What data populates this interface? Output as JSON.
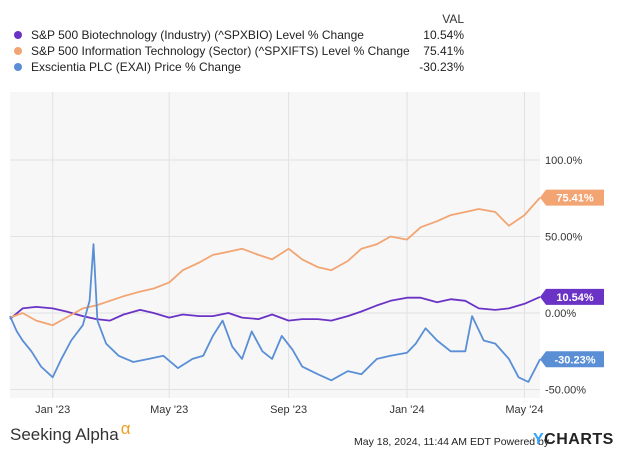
{
  "legend": {
    "header": "VAL",
    "items": [
      {
        "label": "S&P 500 Biotechnology (Industry) (^SPXBIO) Level % Change",
        "value": "10.54%",
        "color": "#6a33c6"
      },
      {
        "label": "S&P 500 Information Technology (Sector) (^SPXIFTS) Level % Change",
        "value": "75.41%",
        "color": "#f2a573"
      },
      {
        "label": "Exscientia PLC (EXAI) Price % Change",
        "value": "-30.23%",
        "color": "#5a8fd6"
      }
    ]
  },
  "footer": {
    "brand": "Seeking Alpha",
    "brand_mark": "α",
    "date_text": "May 18, 2024, 11:44 AM EDT Powered by",
    "ycharts_y": "Y",
    "ycharts_rest": "CHARTS"
  },
  "chart_data": {
    "type": "line",
    "ylim": [
      -50,
      100
    ],
    "xlim": [
      "2022-11-18",
      "2024-05-17"
    ],
    "grid": true,
    "y_ticks": [
      {
        "value": 100,
        "label": "100.0%"
      },
      {
        "value": 50,
        "label": "50.00%"
      },
      {
        "value": 0,
        "label": "0.00%"
      },
      {
        "value": -50,
        "label": "-50.00%"
      }
    ],
    "x_ticks": [
      {
        "date": "2023-01-01",
        "label": "Jan '23"
      },
      {
        "date": "2023-05-01",
        "label": "May '23"
      },
      {
        "date": "2023-09-01",
        "label": "Sep '23"
      },
      {
        "date": "2024-01-01",
        "label": "Jan '24"
      },
      {
        "date": "2024-05-01",
        "label": "May '24"
      }
    ],
    "series": [
      {
        "name": "S&P 500 Biotechnology (Industry) (^SPXBIO) Level % Change",
        "color": "#6a33c6",
        "end_label": "10.54%",
        "x": [
          "2022-11-18",
          "2022-12-01",
          "2022-12-15",
          "2023-01-01",
          "2023-01-15",
          "2023-02-01",
          "2023-02-15",
          "2023-03-01",
          "2023-03-15",
          "2023-04-01",
          "2023-04-15",
          "2023-05-01",
          "2023-05-15",
          "2023-06-01",
          "2023-06-15",
          "2023-07-01",
          "2023-07-15",
          "2023-08-01",
          "2023-08-15",
          "2023-09-01",
          "2023-09-15",
          "2023-10-01",
          "2023-10-15",
          "2023-11-01",
          "2023-11-15",
          "2023-12-01",
          "2023-12-15",
          "2024-01-01",
          "2024-01-15",
          "2024-02-01",
          "2024-02-15",
          "2024-03-01",
          "2024-03-15",
          "2024-04-01",
          "2024-04-15",
          "2024-05-01",
          "2024-05-17"
        ],
        "y": [
          -4,
          3,
          4,
          3,
          1,
          -2,
          -4,
          -5,
          -1,
          2,
          0,
          -3,
          -1,
          -2,
          -2,
          0,
          -3,
          -4,
          -1,
          -5,
          -4,
          -4,
          -5,
          -2,
          1,
          5,
          8,
          10,
          10,
          7,
          9,
          8,
          3,
          2,
          3,
          6,
          10.54
        ]
      },
      {
        "name": "S&P 500 Information Technology (Sector) (^SPXIFTS) Level % Change",
        "color": "#f2a573",
        "end_label": "75.41%",
        "x": [
          "2022-11-18",
          "2022-12-01",
          "2022-12-15",
          "2023-01-01",
          "2023-01-15",
          "2023-02-01",
          "2023-02-15",
          "2023-03-01",
          "2023-03-15",
          "2023-04-01",
          "2023-04-15",
          "2023-05-01",
          "2023-05-15",
          "2023-06-01",
          "2023-06-15",
          "2023-07-01",
          "2023-07-15",
          "2023-08-01",
          "2023-08-15",
          "2023-09-01",
          "2023-09-15",
          "2023-10-01",
          "2023-10-15",
          "2023-11-01",
          "2023-11-15",
          "2023-12-01",
          "2023-12-15",
          "2024-01-01",
          "2024-01-15",
          "2024-02-01",
          "2024-02-15",
          "2024-03-01",
          "2024-03-15",
          "2024-04-01",
          "2024-04-15",
          "2024-05-01",
          "2024-05-17"
        ],
        "y": [
          -3,
          0,
          -5,
          -8,
          -3,
          3,
          5,
          8,
          11,
          14,
          16,
          20,
          28,
          33,
          38,
          40,
          42,
          38,
          35,
          42,
          35,
          30,
          28,
          34,
          42,
          45,
          50,
          48,
          56,
          60,
          64,
          66,
          68,
          66,
          57,
          64,
          75.41
        ]
      },
      {
        "name": "Exscientia PLC (EXAI) Price % Change",
        "color": "#5a8fd6",
        "end_label": "-30.23%",
        "x": [
          "2022-11-18",
          "2022-11-25",
          "2022-12-01",
          "2022-12-10",
          "2022-12-20",
          "2023-01-01",
          "2023-01-10",
          "2023-01-20",
          "2023-02-01",
          "2023-02-08",
          "2023-02-12",
          "2023-02-16",
          "2023-02-25",
          "2023-03-10",
          "2023-03-25",
          "2023-04-10",
          "2023-04-25",
          "2023-05-10",
          "2023-05-25",
          "2023-06-05",
          "2023-06-15",
          "2023-06-25",
          "2023-07-05",
          "2023-07-15",
          "2023-07-25",
          "2023-08-05",
          "2023-08-15",
          "2023-08-25",
          "2023-09-05",
          "2023-09-15",
          "2023-10-01",
          "2023-10-15",
          "2023-11-01",
          "2023-11-15",
          "2023-12-01",
          "2023-12-15",
          "2024-01-01",
          "2024-01-10",
          "2024-01-20",
          "2024-02-01",
          "2024-02-15",
          "2024-03-01",
          "2024-03-08",
          "2024-03-20",
          "2024-04-01",
          "2024-04-15",
          "2024-04-25",
          "2024-05-05",
          "2024-05-17"
        ],
        "y": [
          -2,
          -12,
          -18,
          -25,
          -35,
          -42,
          -30,
          -18,
          -8,
          8,
          45,
          -5,
          -20,
          -28,
          -32,
          -30,
          -28,
          -36,
          -30,
          -28,
          -15,
          -5,
          -22,
          -30,
          -12,
          -25,
          -30,
          -15,
          -24,
          -35,
          -40,
          -44,
          -38,
          -40,
          -30,
          -28,
          -26,
          -20,
          -10,
          -18,
          -25,
          -25,
          -2,
          -18,
          -20,
          -30,
          -42,
          -45,
          -30.23
        ]
      }
    ]
  }
}
